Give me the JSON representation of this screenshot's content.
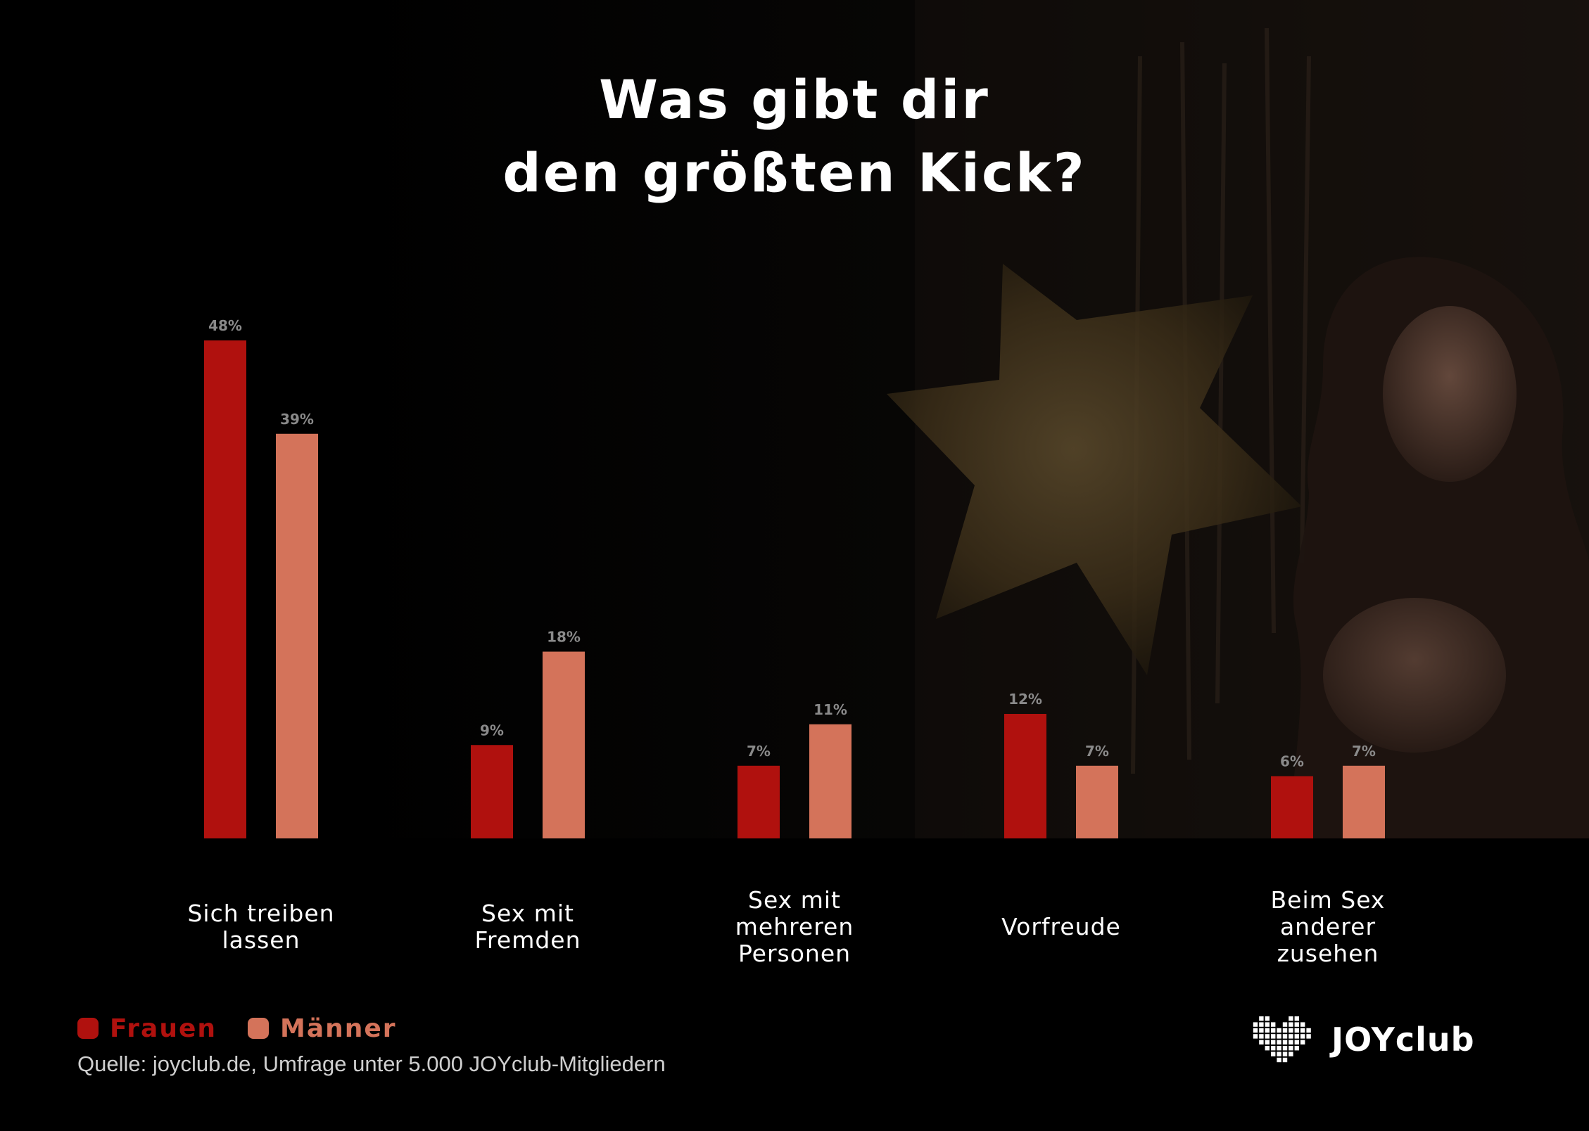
{
  "title_line1": "Was gibt dir",
  "title_line2": "den größten Kick?",
  "legend": {
    "women": {
      "label": "Frauen",
      "color": "#b0110e"
    },
    "men": {
      "label": "Männer",
      "color": "#d4735a"
    }
  },
  "source": "Quelle: joyclub.de, Umfrage unter 5.000 JOYclub-Mitgliedern",
  "logo": {
    "text": "JOYclub",
    "icon": "heart-pixel-icon"
  },
  "chart_data": {
    "type": "bar",
    "categories": [
      [
        "Sich treiben",
        "lassen"
      ],
      [
        "Sex mit",
        "Fremden"
      ],
      [
        "Sex mit",
        "mehreren",
        "Personen"
      ],
      [
        "Vorfreude"
      ],
      [
        "Beim Sex",
        "anderer",
        "zusehen"
      ]
    ],
    "series": [
      {
        "name": "Frauen",
        "color": "#b0110e",
        "values": [
          48,
          9,
          7,
          12,
          6
        ],
        "labels": [
          "48%",
          "9%",
          "7%",
          "12%",
          "6%"
        ]
      },
      {
        "name": "Männer",
        "color": "#d4735a",
        "values": [
          39,
          18,
          11,
          7,
          7
        ],
        "labels": [
          "39%",
          "18%",
          "11%",
          "7%",
          "7%"
        ]
      }
    ],
    "ylim": [
      0,
      48
    ],
    "grid": false,
    "legend_position": "bottom-left"
  }
}
